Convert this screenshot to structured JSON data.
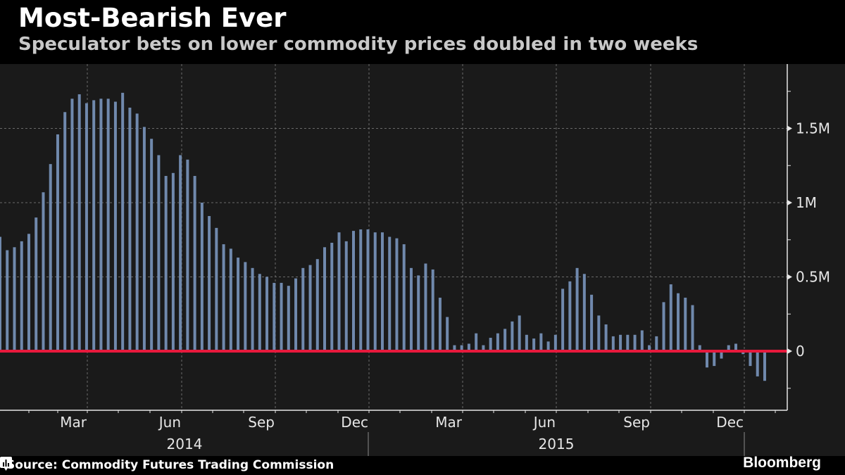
{
  "header": {
    "title": "Most-Bearish Ever",
    "subtitle": "Speculator bets on lower commodity prices doubled in two weeks"
  },
  "footer": {
    "source": "Source: Commodity Futures Trading Commission",
    "brand": "Bloomberg",
    "brand_icon": "bloomberg-chart-icon"
  },
  "colors": {
    "background": "#000000",
    "plot_background": "#1a1a1a",
    "bar": "#7089ad",
    "zero_line": "#e8193c",
    "grid": "#6a6a6a",
    "axis": "#e6e6e6"
  },
  "chart_data": {
    "type": "bar",
    "title": "Most-Bearish Ever",
    "subtitle": "Speculator bets on lower commodity prices doubled in two weeks",
    "xlabel": "",
    "ylabel": "",
    "frequency": "weekly",
    "ylim": [
      -0.38,
      1.93
    ],
    "y_unit": "M",
    "y_ticks": [
      {
        "value": 0,
        "label": "0"
      },
      {
        "value": 0.5,
        "label": "0.5M"
      },
      {
        "value": 1.0,
        "label": "1M"
      },
      {
        "value": 1.5,
        "label": "1.5M"
      }
    ],
    "y_minor_ticks": [
      -0.25,
      0.25,
      0.75,
      1.25,
      1.75
    ],
    "x_month_labels": [
      "Mar",
      "Jun",
      "Sep",
      "Dec",
      "Mar",
      "Jun",
      "Sep",
      "Dec"
    ],
    "x_year_labels": [
      "2014",
      "2015"
    ],
    "grid": true,
    "reference_line": {
      "value": 0,
      "color": "#e8193c"
    },
    "values": [
      0.77,
      0.68,
      0.7,
      0.74,
      0.79,
      0.9,
      1.07,
      1.26,
      1.46,
      1.61,
      1.7,
      1.73,
      1.67,
      1.69,
      1.7,
      1.7,
      1.68,
      1.74,
      1.64,
      1.6,
      1.51,
      1.43,
      1.32,
      1.18,
      1.2,
      1.32,
      1.29,
      1.18,
      1.0,
      0.91,
      0.83,
      0.72,
      0.69,
      0.63,
      0.6,
      0.56,
      0.52,
      0.5,
      0.46,
      0.46,
      0.44,
      0.49,
      0.56,
      0.58,
      0.62,
      0.7,
      0.73,
      0.8,
      0.74,
      0.81,
      0.82,
      0.82,
      0.8,
      0.8,
      0.77,
      0.76,
      0.72,
      0.56,
      0.51,
      0.59,
      0.55,
      0.36,
      0.23,
      0.04,
      0.04,
      0.05,
      0.12,
      0.04,
      0.09,
      0.12,
      0.15,
      0.2,
      0.24,
      0.11,
      0.085,
      0.12,
      0.065,
      0.11,
      0.42,
      0.47,
      0.56,
      0.52,
      0.38,
      0.24,
      0.18,
      0.1,
      0.11,
      0.11,
      0.11,
      0.14,
      0.04,
      0.1,
      0.33,
      0.45,
      0.39,
      0.36,
      0.31,
      0.04,
      -0.11,
      -0.1,
      -0.05,
      0.04,
      0.05,
      -0.02,
      -0.1,
      -0.17,
      -0.2
    ]
  }
}
